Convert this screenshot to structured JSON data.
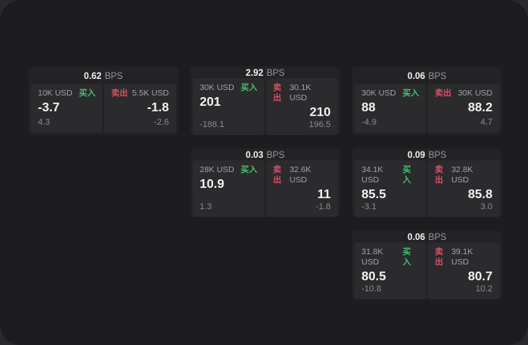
{
  "labels": {
    "bps_unit": "BPS",
    "buy": "买入",
    "sell": "卖出"
  },
  "colors": {
    "buy": "#46c06a",
    "sell": "#d94f63",
    "window_bg": "#1d1d1f",
    "card_bg": "#232326",
    "panel_bg": "#2b2b2e"
  },
  "cards": [
    {
      "bps": "0.62",
      "buy": {
        "amount": "10K USD",
        "price": "-3.7",
        "delta": "4.3"
      },
      "sell": {
        "amount": "5.5K USD",
        "price": "-1.8",
        "delta": "-2.6"
      }
    },
    {
      "bps": "2.92",
      "buy": {
        "amount": "30K USD",
        "price": "201",
        "delta": "-188.1"
      },
      "sell": {
        "amount": "30.1K USD",
        "price": "210",
        "delta": "196.5"
      }
    },
    {
      "bps": "0.06",
      "buy": {
        "amount": "30K USD",
        "price": "88",
        "delta": "-4.9"
      },
      "sell": {
        "amount": "30K USD",
        "price": "88.2",
        "delta": "4.7"
      }
    },
    {
      "bps": "0.03",
      "buy": {
        "amount": "28K USD",
        "price": "10.9",
        "delta": "1.3"
      },
      "sell": {
        "amount": "32.6K USD",
        "price": "11",
        "delta": "-1.8"
      }
    },
    {
      "bps": "0.09",
      "buy": {
        "amount": "34.1K USD",
        "price": "85.5",
        "delta": "-3.1"
      },
      "sell": {
        "amount": "32.8K USD",
        "price": "85.8",
        "delta": "3.0"
      }
    },
    {
      "bps": "0.06",
      "buy": {
        "amount": "31.8K USD",
        "price": "80.5",
        "delta": "-10.8"
      },
      "sell": {
        "amount": "39.1K USD",
        "price": "80.7",
        "delta": "10.2"
      }
    }
  ]
}
